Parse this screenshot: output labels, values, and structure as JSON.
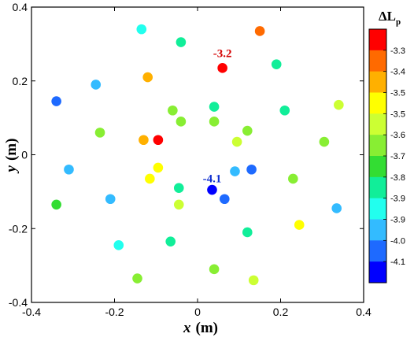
{
  "chart_data": {
    "type": "scatter",
    "title": "",
    "xlabel": {
      "var": "x",
      "unit": "(m)"
    },
    "ylabel": {
      "var": "y",
      "unit": "(m)"
    },
    "xlim": [
      -0.4,
      0.4
    ],
    "ylim": [
      -0.4,
      0.4
    ],
    "xticks": [
      "-0.4",
      "-0.2",
      "0",
      "0.2",
      "0.4"
    ],
    "yticks": [
      "-0.4",
      "-0.2",
      "0",
      "0.2",
      "0.4"
    ],
    "grid": false,
    "colorbar": {
      "title": "ΔL",
      "title_sub": "p",
      "placement": "right",
      "labels": [
        "-3.3",
        "-3.4",
        "-3.5",
        "-3.5",
        "-3.6",
        "-3.7",
        "-3.8",
        "-3.9",
        "-3.9",
        "-4.0",
        "-4.1"
      ],
      "colors": [
        "#ff0000",
        "#ff6a00",
        "#ffb000",
        "#ffff00",
        "#ccff33",
        "#88ee33",
        "#33dd33",
        "#11ee99",
        "#22ffee",
        "#33bbff",
        "#1e6aff",
        "#0000ff"
      ]
    },
    "annotations": [
      {
        "text": "-3.2",
        "x": 0.06,
        "y": 0.265,
        "color": "#d40000"
      },
      {
        "text": "-4.1",
        "x": 0.035,
        "y": -0.075,
        "color": "#1030d0"
      }
    ],
    "points": [
      {
        "x": 0.15,
        "y": 0.335,
        "v": -3.31
      },
      {
        "x": 0.06,
        "y": 0.235,
        "v": -3.2
      },
      {
        "x": -0.12,
        "y": 0.21,
        "v": -3.42
      },
      {
        "x": -0.13,
        "y": 0.04,
        "v": -3.42
      },
      {
        "x": -0.095,
        "y": 0.04,
        "v": -3.25
      },
      {
        "x": 0.035,
        "y": -0.095,
        "v": -4.1
      },
      {
        "x": 0.065,
        "y": -0.12,
        "v": -4.05
      },
      {
        "x": -0.34,
        "y": 0.145,
        "v": -4.05
      },
      {
        "x": 0.13,
        "y": -0.04,
        "v": -4.05
      },
      {
        "x": -0.245,
        "y": 0.19,
        "v": -3.96
      },
      {
        "x": 0.09,
        "y": -0.045,
        "v": -3.96
      },
      {
        "x": -0.31,
        "y": -0.04,
        "v": -3.96
      },
      {
        "x": -0.21,
        "y": -0.12,
        "v": -3.96
      },
      {
        "x": 0.335,
        "y": -0.145,
        "v": -3.96
      },
      {
        "x": -0.135,
        "y": 0.34,
        "v": -3.89
      },
      {
        "x": -0.19,
        "y": -0.245,
        "v": -3.89
      },
      {
        "x": 0.19,
        "y": 0.245,
        "v": -3.82
      },
      {
        "x": -0.04,
        "y": 0.305,
        "v": -3.82
      },
      {
        "x": 0.04,
        "y": 0.13,
        "v": -3.82
      },
      {
        "x": 0.21,
        "y": 0.12,
        "v": -3.82
      },
      {
        "x": -0.045,
        "y": -0.09,
        "v": -3.82
      },
      {
        "x": 0.12,
        "y": -0.21,
        "v": -3.82
      },
      {
        "x": -0.065,
        "y": -0.235,
        "v": -3.82
      },
      {
        "x": -0.34,
        "y": -0.135,
        "v": -3.72
      },
      {
        "x": -0.235,
        "y": 0.06,
        "v": -3.65
      },
      {
        "x": -0.06,
        "y": 0.12,
        "v": -3.65
      },
      {
        "x": -0.04,
        "y": 0.09,
        "v": -3.65
      },
      {
        "x": 0.04,
        "y": 0.09,
        "v": -3.65
      },
      {
        "x": 0.12,
        "y": 0.065,
        "v": -3.65
      },
      {
        "x": 0.305,
        "y": 0.035,
        "v": -3.65
      },
      {
        "x": 0.23,
        "y": -0.065,
        "v": -3.65
      },
      {
        "x": 0.04,
        "y": -0.31,
        "v": -3.65
      },
      {
        "x": -0.145,
        "y": -0.335,
        "v": -3.65
      },
      {
        "x": 0.34,
        "y": 0.135,
        "v": -3.55
      },
      {
        "x": 0.095,
        "y": 0.035,
        "v": -3.55
      },
      {
        "x": -0.045,
        "y": -0.135,
        "v": -3.55
      },
      {
        "x": 0.135,
        "y": -0.34,
        "v": -3.55
      },
      {
        "x": -0.095,
        "y": -0.035,
        "v": -3.48
      },
      {
        "x": -0.115,
        "y": -0.065,
        "v": -3.48
      },
      {
        "x": 0.245,
        "y": -0.19,
        "v": -3.48
      }
    ]
  }
}
